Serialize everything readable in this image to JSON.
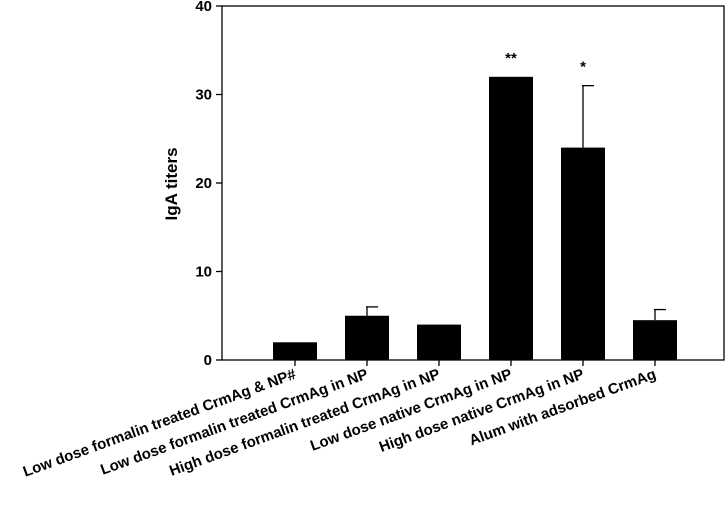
{
  "chart_data": {
    "type": "bar",
    "title": "",
    "ylabel": "IgA titers",
    "xlabel": "",
    "ylim": [
      0,
      40
    ],
    "yticks": [
      0,
      10,
      20,
      30,
      40
    ],
    "grid": false,
    "categories": [
      "Low dose formalin treated CrmAg & NP#",
      "Low dose formalin treated CrmAg in NP",
      "High dose formalin treated CrmAg in NP",
      "Low dose native CrmAg in NP",
      "High dose native CrmAg in NP",
      "Alum with adsorbed CrmAg"
    ],
    "values": [
      2,
      5,
      4,
      32,
      24,
      4.5
    ],
    "error_upper": [
      0,
      1,
      0,
      0,
      7,
      1.2
    ],
    "annotations": [
      "",
      "",
      "",
      "**",
      "*",
      ""
    ],
    "bar_color": "#000000"
  }
}
